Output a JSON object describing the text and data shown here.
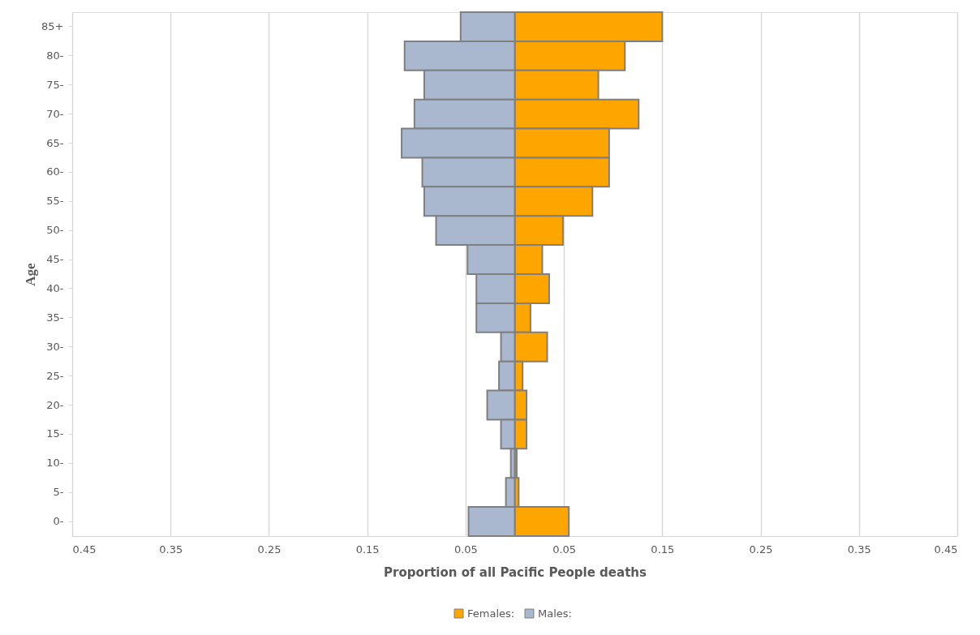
{
  "chart_data": {
    "type": "bar",
    "orientation": "horizontal",
    "xlabel": "Proportion of all Pacific People deaths",
    "ylabel": "Age",
    "categories": [
      "85+",
      "80-",
      "75-",
      "70-",
      "65-",
      "60-",
      "55-",
      "50-",
      "45-",
      "40-",
      "35-",
      "30-",
      "25-",
      "20-",
      "15-",
      "10-",
      "5-",
      "0-"
    ],
    "series": [
      {
        "name": "Females:",
        "color": "#ffa500",
        "values": [
          0.15,
          0.112,
          0.085,
          0.126,
          0.096,
          0.096,
          0.079,
          0.049,
          0.028,
          0.035,
          0.016,
          0.033,
          0.008,
          0.012,
          0.012,
          0.002,
          0.004,
          0.055
        ]
      },
      {
        "name": "Males:",
        "color": "#a9b8cf",
        "values": [
          -0.055,
          -0.112,
          -0.092,
          -0.102,
          -0.115,
          -0.094,
          -0.092,
          -0.08,
          -0.048,
          -0.039,
          -0.039,
          -0.014,
          -0.016,
          -0.028,
          -0.014,
          -0.004,
          -0.009,
          -0.047
        ]
      }
    ],
    "xlim": [
      -0.45,
      0.45
    ],
    "xticks": [
      {
        "value": -0.45,
        "label": "0.45"
      },
      {
        "value": -0.35,
        "label": "0.35"
      },
      {
        "value": -0.25,
        "label": "0.25"
      },
      {
        "value": -0.15,
        "label": "0.15"
      },
      {
        "value": -0.05,
        "label": "0.05"
      },
      0.05,
      0.15,
      0.25,
      0.35,
      0.45
    ],
    "stacked": true,
    "grid": "x",
    "legend": "bottom"
  }
}
